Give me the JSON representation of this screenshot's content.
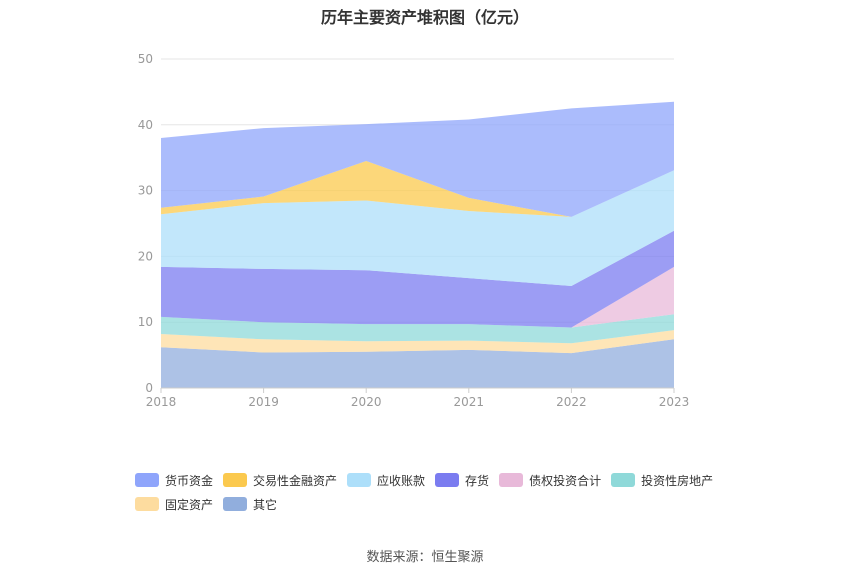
{
  "chart_data": {
    "type": "area",
    "stacked": true,
    "title": "历年主要资产堆积图（亿元）",
    "x": [
      "2018",
      "2019",
      "2020",
      "2021",
      "2022",
      "2023"
    ],
    "ylim": [
      0,
      50
    ],
    "yticks": [
      "0",
      "10",
      "20",
      "30",
      "40",
      "50"
    ],
    "grid": true,
    "legend_position": "bottom",
    "series": [
      {
        "name": "货币资金",
        "values": [
          10.6,
          10.4,
          5.6,
          11.9,
          16.5,
          10.4
        ],
        "color": "#8fa5fb"
      },
      {
        "name": "交易性金融资产",
        "values": [
          1.0,
          1.0,
          6.0,
          2.0,
          0.0,
          0.0
        ],
        "color": "#fbc94e"
      },
      {
        "name": "应收账款",
        "values": [
          8.0,
          10.0,
          10.6,
          10.2,
          10.5,
          9.2
        ],
        "color": "#addffa"
      },
      {
        "name": "存货",
        "values": [
          7.6,
          8.1,
          8.2,
          7.0,
          6.3,
          5.5
        ],
        "color": "#7b7cf0"
      },
      {
        "name": "债权投资合计",
        "values": [
          0.0,
          0.0,
          0.0,
          0.0,
          0.0,
          7.2
        ],
        "color": "#e8b9d9"
      },
      {
        "name": "投资性房地产",
        "values": [
          2.6,
          2.6,
          2.6,
          2.5,
          2.4,
          2.4
        ],
        "color": "#8fd9d9"
      },
      {
        "name": "固定资产",
        "values": [
          2.0,
          2.0,
          1.6,
          1.4,
          1.5,
          1.4
        ],
        "color": "#fddc9f"
      },
      {
        "name": "其它",
        "values": [
          6.2,
          5.4,
          5.5,
          5.8,
          5.3,
          7.4
        ],
        "color": "#91aedd"
      }
    ]
  },
  "source": "数据来源：恒生聚源"
}
